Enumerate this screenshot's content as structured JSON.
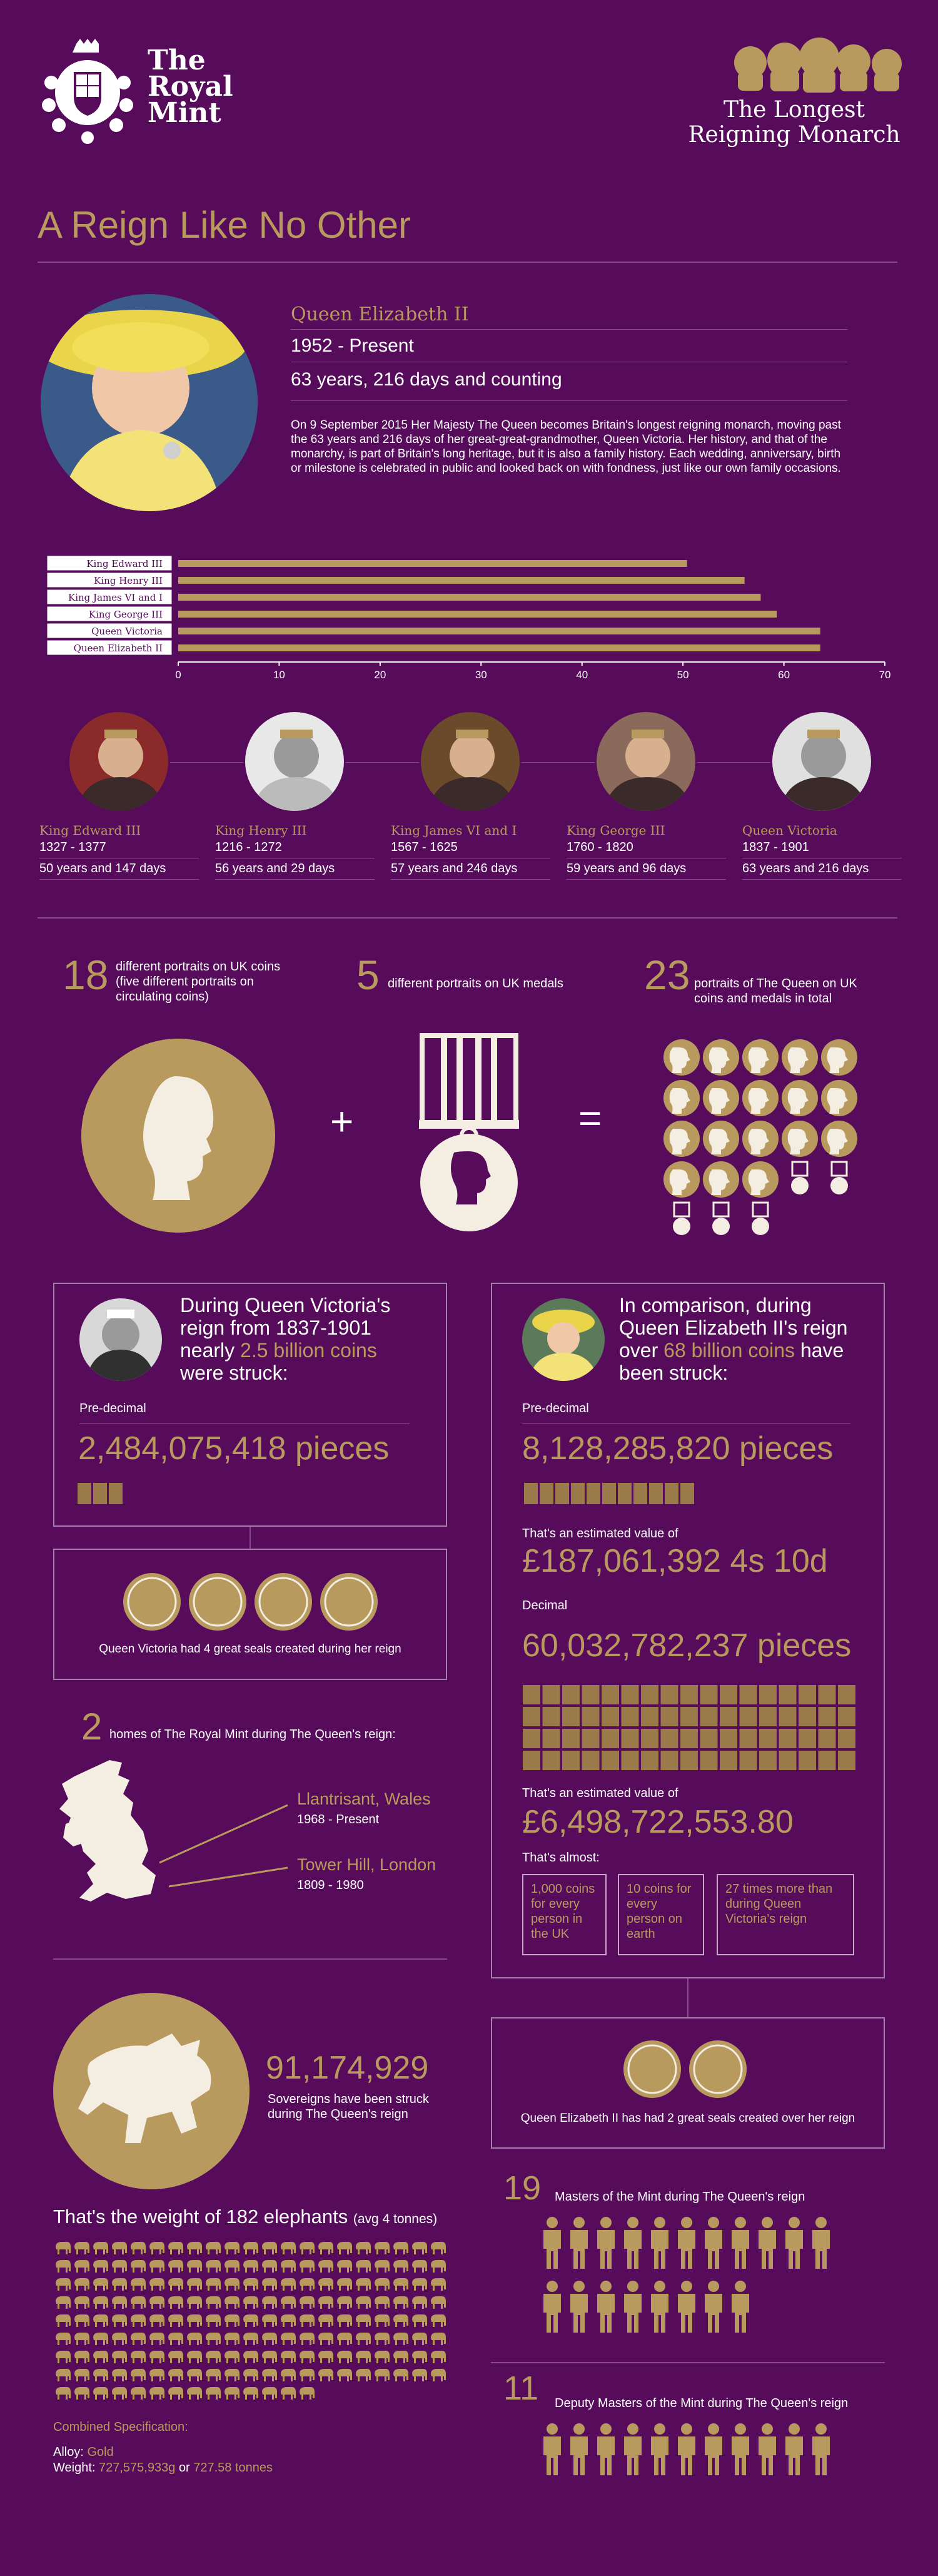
{
  "header": {
    "logo_lines": [
      "The",
      "Royal",
      "Mint"
    ],
    "subtitle_lines": [
      "The Longest",
      "Reigning Monarch"
    ]
  },
  "main_title": "A Reign Like No Other",
  "queen": {
    "name": "Queen Elizabeth II",
    "dates": "1952 - Present",
    "duration": "63 years, 216 days and counting",
    "description": "On 9 September 2015 Her Majesty The Queen becomes Britain's longest reigning monarch, moving past the 63 years and 216 days of her great-great-grandmother, Queen Victoria. Her history, and that of the monarchy, is part of Britain's long heritage, but it is also a family history. Each wedding, anniversary, birth or milestone is celebrated in public and looked back on with fondness, just like our own family occasions."
  },
  "chart_data": {
    "type": "bar",
    "orientation": "horizontal",
    "categories": [
      "King Edward III",
      "King Henry III",
      "King James VI and I",
      "King George III",
      "Queen Victoria",
      "Queen Elizabeth II"
    ],
    "values": [
      50.4,
      56.1,
      57.7,
      59.3,
      63.6,
      63.6
    ],
    "xlim": [
      0,
      70
    ],
    "xticks": [
      "0",
      "10",
      "20",
      "30",
      "40",
      "50",
      "60",
      "70"
    ],
    "bar_color": "#b99a5e",
    "grid": false
  },
  "monarchs": [
    {
      "name": "King Edward III",
      "dates": "1327 - 1377",
      "reign": "50 years and 147 days"
    },
    {
      "name": "King Henry III",
      "dates": "1216 - 1272",
      "reign": "56 years and 29 days"
    },
    {
      "name": "King James VI and I",
      "dates": "1567 - 1625",
      "reign": "57 years and 246 days"
    },
    {
      "name": "King George III",
      "dates": "1760 - 1820",
      "reign": "59 years and 96 days"
    },
    {
      "name": "Queen Victoria",
      "dates": "1837 - 1901",
      "reign": "63 years and 216 days"
    }
  ],
  "portraits": {
    "coins_num": "18",
    "coins_text": "different portraits on UK coins (five different portraits on circulating coins)",
    "medals_num": "5",
    "medals_text": "different portraits on UK medals",
    "total_num": "23",
    "total_text": "portraits of The Queen on UK coins and medals in total",
    "plus": "+",
    "equals": "="
  },
  "victoria": {
    "line1": "During Queen Victoria's",
    "line2": "reign from 1837-1901",
    "line3_pre": "nearly ",
    "line3_gold": "2.5 billion coins",
    "line4": "were struck:",
    "predecimal_label": "Pre-decimal",
    "pieces": "2,484,075,418 pieces",
    "seals_text": "Queen Victoria had 4 great seals created during her reign"
  },
  "elizabeth": {
    "line1": "In comparison, during",
    "line2": "Queen Elizabeth II's reign",
    "line3_pre": "over ",
    "line3_gold": "68 billion coins",
    "line3_post": " have",
    "line4": "been struck:",
    "predecimal_label": "Pre-decimal",
    "predecimal_pieces": "8,128,285,820 pieces",
    "value_label": "That's an estimated value of",
    "predecimal_value": "£187,061,392 4s 10d",
    "decimal_label": "Decimal",
    "decimal_pieces": "60,032,782,237 pieces",
    "decimal_value_label": "That's an estimated value of",
    "decimal_value": "£6,498,722,553.80",
    "almost_label": "That's almost:",
    "tiles": [
      "1,000 coins for every person in the UK",
      "10 coins for every person on earth",
      "27 times more than during Queen Victoria's reign"
    ],
    "seals_text": "Queen Elizabeth II has had 2 great seals created over her reign"
  },
  "homes": {
    "num": "2",
    "text": "homes of The Royal Mint during The Queen's reign:",
    "loc1_name": "Llantrisant, Wales",
    "loc1_dates": "1968 - Present",
    "loc2_name": "Tower Hill, London",
    "loc2_dates": "1809 - 1980"
  },
  "sovereigns": {
    "num": "91,174,929",
    "text1": "Sovereigns have been struck",
    "text2": "during The Queen's reign",
    "weight_main": "That's the weight of 182 elephants",
    "weight_note": "(avg 4 tonnes)",
    "elephant_count": 182,
    "spec_label": "Combined Specification:",
    "alloy_label": "Alloy: ",
    "alloy_value": "Gold",
    "weight_label": "Weight: ",
    "weight_value1": "727,575,933g",
    "weight_or": " or ",
    "weight_value2": "727.58 tonnes"
  },
  "masters": {
    "num": "19",
    "text": "Masters of the Mint during The Queen's reign",
    "count": 19
  },
  "deputy": {
    "num": "11",
    "text": "Deputy Masters of the Mint during The Queen's reign",
    "count": 11
  },
  "colors": {
    "background": "#560b5b",
    "gold": "#b99a5e",
    "line": "#8a4a8f",
    "cream": "#f3ede2"
  }
}
